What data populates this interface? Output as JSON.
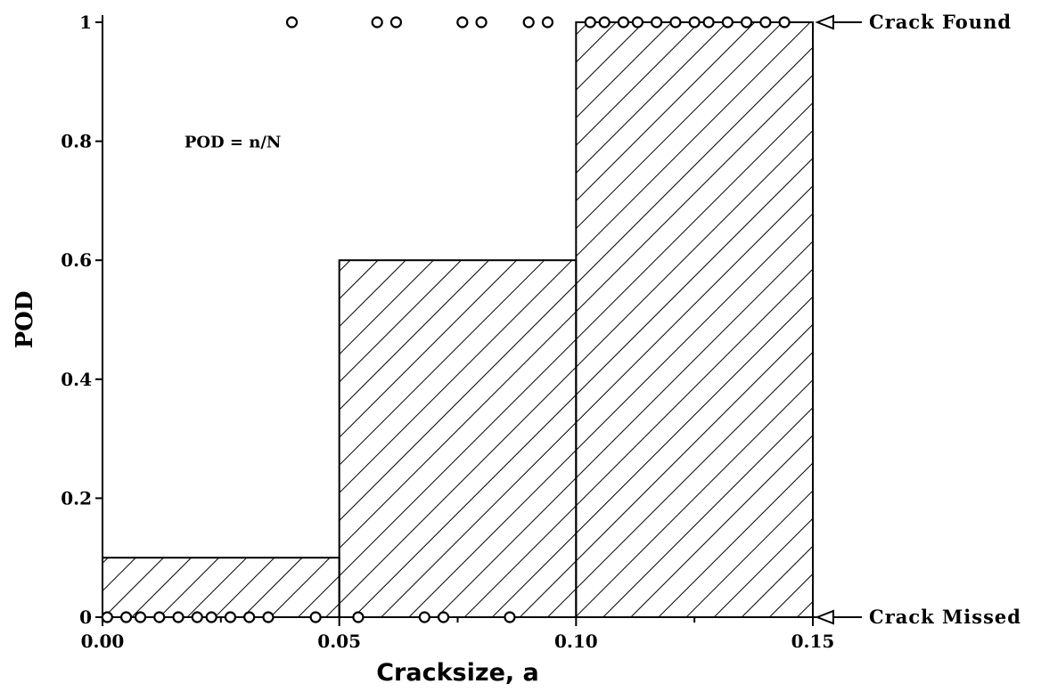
{
  "chart_data": {
    "type": "bar",
    "title": "",
    "xlabel": "Cracksize, a",
    "ylabel": "POD",
    "xlim": [
      0,
      0.15
    ],
    "ylim": [
      0,
      1
    ],
    "x_ticks": [
      "0.00",
      "0.05",
      "0.10",
      "0.15"
    ],
    "y_ticks": [
      "0",
      "0.2",
      "0.4",
      "0.6",
      "0.8",
      "1"
    ],
    "bins": [
      {
        "x0": 0.0,
        "x1": 0.05,
        "value": 0.1
      },
      {
        "x0": 0.05,
        "x1": 0.1,
        "value": 0.6
      },
      {
        "x0": 0.1,
        "x1": 0.15,
        "value": 1.0
      }
    ],
    "bar_fill": "diagonal hatch",
    "series": [
      {
        "name": "Crack Found",
        "y": 1,
        "x": [
          0.04,
          0.058,
          0.062,
          0.076,
          0.08,
          0.09,
          0.094,
          0.103,
          0.106,
          0.11,
          0.113,
          0.117,
          0.121,
          0.125,
          0.128,
          0.132,
          0.136,
          0.14,
          0.144
        ]
      },
      {
        "name": "Crack Missed",
        "y": 0,
        "x": [
          0.001,
          0.005,
          0.008,
          0.012,
          0.016,
          0.02,
          0.023,
          0.027,
          0.031,
          0.035,
          0.045,
          0.054,
          0.068,
          0.072,
          0.086
        ]
      }
    ],
    "annotations": {
      "formula": "POD = n/N",
      "found_label": "Crack Found",
      "missed_label": "Crack Missed"
    },
    "grid": false,
    "legend": "none"
  }
}
